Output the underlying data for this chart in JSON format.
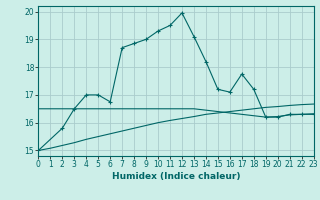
{
  "xlabel": "Humidex (Indice chaleur)",
  "bg_color": "#cceee8",
  "grid_color": "#aacccc",
  "line_color": "#006666",
  "x_values": [
    0,
    1,
    2,
    3,
    4,
    5,
    6,
    7,
    8,
    9,
    10,
    11,
    12,
    13,
    14,
    15,
    16,
    17,
    18,
    19,
    20,
    21,
    22,
    23
  ],
  "line1_y": [
    15.0,
    null,
    15.8,
    16.5,
    17.0,
    17.0,
    16.75,
    18.7,
    18.85,
    19.0,
    19.3,
    19.5,
    19.95,
    19.1,
    18.2,
    17.2,
    17.1,
    17.75,
    17.2,
    16.2,
    16.2,
    16.3,
    16.3,
    16.3
  ],
  "line2_y": [
    16.5,
    16.5,
    16.5,
    16.5,
    16.5,
    16.5,
    16.5,
    16.5,
    16.5,
    16.5,
    16.5,
    16.5,
    16.5,
    16.5,
    16.45,
    16.4,
    16.35,
    16.3,
    16.25,
    16.2,
    16.22,
    16.28,
    16.3,
    16.32
  ],
  "line3_y": [
    15.0,
    15.08,
    15.18,
    15.28,
    15.4,
    15.5,
    15.6,
    15.7,
    15.8,
    15.9,
    16.0,
    16.08,
    16.15,
    16.22,
    16.3,
    16.35,
    16.4,
    16.45,
    16.5,
    16.55,
    16.58,
    16.62,
    16.65,
    16.67
  ],
  "xlim": [
    0,
    23
  ],
  "ylim": [
    14.8,
    20.2
  ],
  "yticks": [
    15,
    16,
    17,
    18,
    19,
    20
  ],
  "xticks": [
    0,
    1,
    2,
    3,
    4,
    5,
    6,
    7,
    8,
    9,
    10,
    11,
    12,
    13,
    14,
    15,
    16,
    17,
    18,
    19,
    20,
    21,
    22,
    23
  ]
}
